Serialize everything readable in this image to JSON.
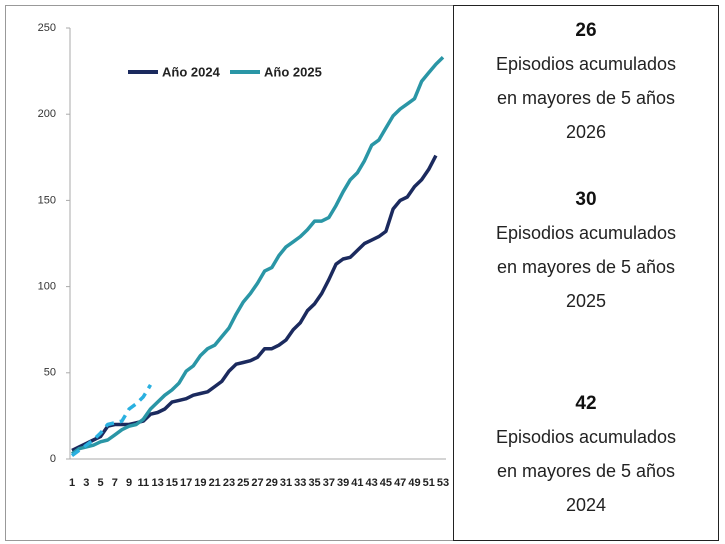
{
  "chart_data": {
    "type": "line",
    "categories": [
      "1",
      null,
      "3",
      null,
      "5",
      null,
      "7",
      null,
      "9",
      null,
      "11",
      null,
      "13",
      null,
      "15",
      null,
      "17",
      null,
      "19",
      null,
      "21",
      null,
      "23",
      null,
      "25",
      null,
      "27",
      null,
      "29",
      null,
      "31",
      null,
      "33",
      null,
      "35",
      null,
      "37",
      null,
      "39",
      null,
      "41",
      null,
      "43",
      null,
      "45",
      null,
      "47",
      null,
      "49",
      null,
      "51",
      null,
      "53"
    ],
    "series": [
      {
        "name": "Año 2024",
        "color": "#1b2a5e",
        "values": [
          5,
          7,
          9,
          11,
          13,
          19,
          20,
          20,
          20,
          21,
          22,
          26,
          27,
          29,
          33,
          34,
          35,
          37,
          38,
          39,
          42,
          45,
          51,
          55,
          56,
          57,
          59,
          64,
          64,
          66,
          69,
          75,
          79,
          86,
          90,
          96,
          104,
          113,
          116,
          117,
          121,
          125,
          127,
          129,
          132,
          145,
          150,
          152,
          158,
          162,
          168,
          176,
          null
        ]
      },
      {
        "name": "Año 2025",
        "color": "#2a96a6",
        "values": [
          3,
          6,
          7,
          8,
          10,
          11,
          14,
          17,
          19,
          20,
          23,
          29,
          33,
          37,
          40,
          44,
          51,
          54,
          60,
          64,
          66,
          71,
          76,
          84,
          91,
          96,
          102,
          109,
          111,
          118,
          123,
          126,
          129,
          133,
          138,
          138,
          140,
          147,
          155,
          162,
          166,
          173,
          182,
          185,
          192,
          199,
          203,
          206,
          209,
          219,
          224,
          229,
          233
        ]
      },
      {
        "color": "#2ab0e0",
        "dash": true,
        "values": [
          2,
          5,
          8,
          11,
          15,
          20,
          21,
          22,
          29,
          32,
          36,
          43,
          null,
          null,
          null,
          null,
          null,
          null,
          null,
          null,
          null,
          null,
          null,
          null,
          null,
          null,
          null,
          null,
          null,
          null,
          null,
          null,
          null,
          null,
          null,
          null,
          null,
          null,
          null,
          null,
          null,
          null,
          null,
          null,
          null,
          null,
          null,
          null,
          null,
          null,
          null,
          null,
          null
        ]
      }
    ],
    "ylim": [
      0,
      250
    ],
    "yticks": [
      0,
      50,
      100,
      150,
      200,
      250
    ],
    "grid": false
  },
  "summary": [
    {
      "number": "26",
      "lines": [
        "Episodios acumulados",
        "en mayores de 5 años",
        "2026"
      ]
    },
    {
      "number": "30",
      "lines": [
        "Episodios acumulados",
        "en mayores de 5 años",
        "2025"
      ]
    },
    {
      "number": "42",
      "lines": [
        "Episodios acumulados",
        "en mayores de 5 años",
        "2024"
      ]
    }
  ]
}
